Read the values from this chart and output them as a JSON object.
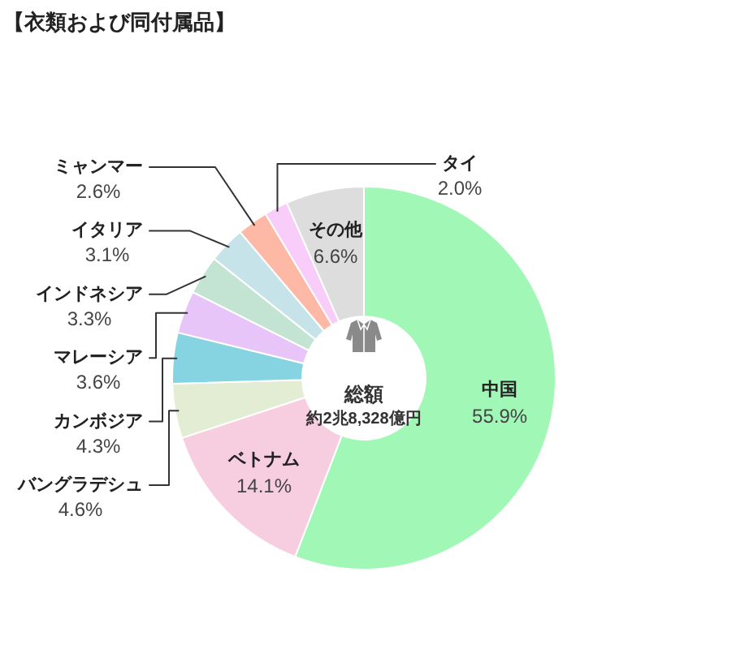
{
  "chart_data": {
    "type": "donut",
    "title": "【衣類および同付属品】",
    "categories": [
      "中国",
      "ベトナム",
      "バングラデシュ",
      "カンボジア",
      "マレーシア",
      "インドネシア",
      "イタリア",
      "ミャンマー",
      "タイ",
      "その他"
    ],
    "values": [
      55.9,
      14.1,
      4.6,
      4.3,
      3.6,
      3.3,
      3.1,
      2.6,
      2.0,
      6.6
    ],
    "value_labels": [
      "55.9%",
      "14.1%",
      "4.6%",
      "4.3%",
      "3.6%",
      "3.3%",
      "3.1%",
      "2.6%",
      "2.0%",
      "6.6%"
    ],
    "colors": [
      "#a0f7b6",
      "#f7cde0",
      "#e3edd4",
      "#86d3e1",
      "#e7c5f9",
      "#c3e4d3",
      "#c5e3e8",
      "#fdb9a5",
      "#f9cdf9",
      "#dddddd"
    ],
    "annotations": [
      "総額",
      "約2兆8,328億円"
    ]
  }
}
